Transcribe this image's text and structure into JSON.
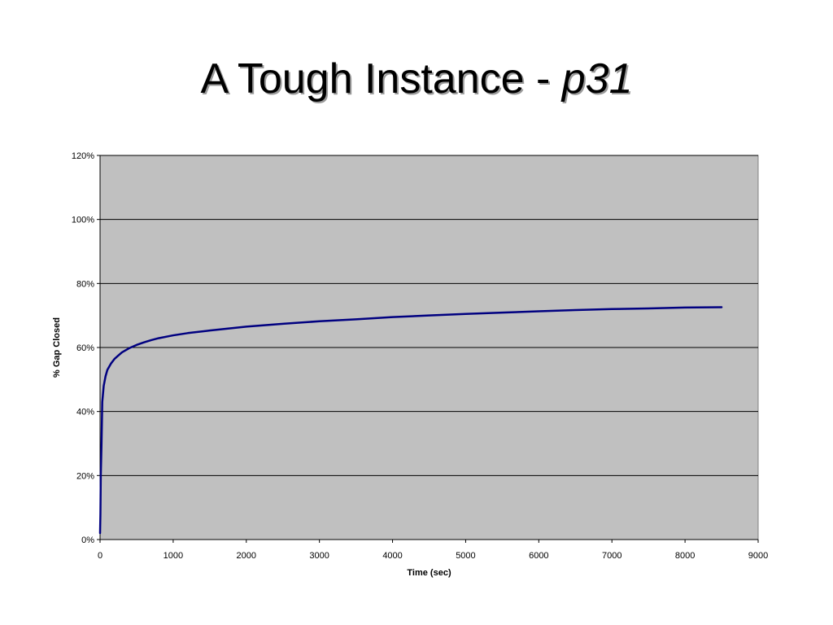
{
  "slide": {
    "title_main": "A Tough Instance - ",
    "title_em": "p31"
  },
  "colors": {
    "plot_background": "#c0c0c0",
    "gridline": "#000000",
    "series_line": "#000080"
  },
  "chart_data": {
    "type": "line",
    "title": "",
    "xlabel": "Time (sec)",
    "ylabel": "% Gap Closed",
    "xlim": [
      0,
      9000
    ],
    "ylim": [
      0,
      120
    ],
    "x_ticks": [
      0,
      1000,
      2000,
      3000,
      4000,
      5000,
      6000,
      7000,
      8000,
      9000
    ],
    "y_ticks": [
      0,
      20,
      40,
      60,
      80,
      100,
      120
    ],
    "x_tick_labels": [
      "0",
      "1000",
      "2000",
      "3000",
      "4000",
      "5000",
      "6000",
      "7000",
      "8000",
      "9000"
    ],
    "y_tick_labels": [
      "0%",
      "20%",
      "40%",
      "60%",
      "80%",
      "100%",
      "120%"
    ],
    "grid": true,
    "legend": false,
    "series": [
      {
        "color": "#000080",
        "x": [
          0,
          5,
          10,
          20,
          30,
          50,
          75,
          100,
          150,
          200,
          250,
          300,
          400,
          500,
          600,
          700,
          800,
          1000,
          1200,
          1500,
          2000,
          2500,
          3000,
          3500,
          4000,
          4500,
          5000,
          5500,
          6000,
          6500,
          7000,
          7500,
          8000,
          8500
        ],
        "y": [
          2,
          8,
          20,
          30,
          43,
          48,
          51,
          53,
          55,
          56.5,
          57.5,
          58.5,
          59.8,
          60.8,
          61.6,
          62.3,
          62.9,
          63.8,
          64.5,
          65.3,
          66.5,
          67.4,
          68.2,
          68.8,
          69.5,
          70,
          70.5,
          70.9,
          71.3,
          71.7,
          72,
          72.2,
          72.5,
          72.6
        ]
      }
    ]
  }
}
